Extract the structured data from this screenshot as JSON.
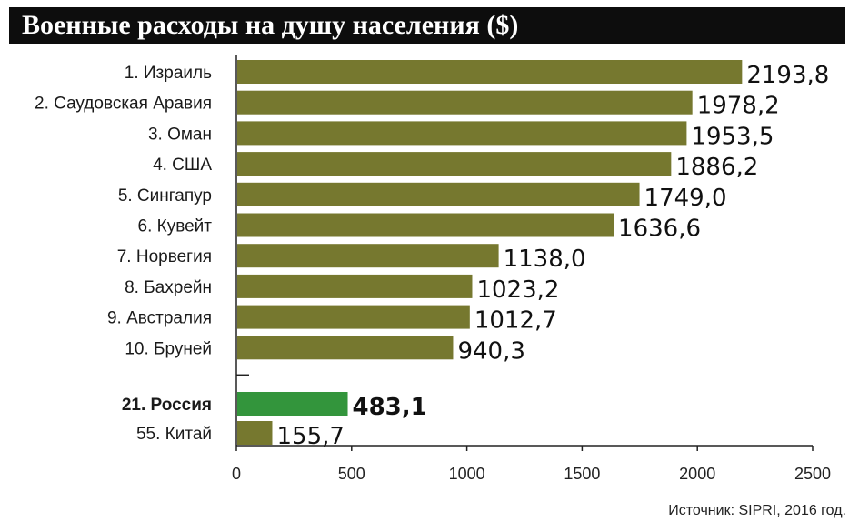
{
  "title": "Военные расходы на душу населения ($)",
  "source": "Источник: SIPRI, 2016 год.",
  "colors": {
    "bar": "#76782f",
    "highlight_bar": "#33953c",
    "title_background": "#0d0d0d",
    "title_text": "#ffffff",
    "axis": "#222222"
  },
  "chart_data": {
    "type": "bar",
    "orientation": "horizontal",
    "title": "Военные расходы на душу населения ($)",
    "xlabel": "",
    "ylabel": "",
    "xlim": [
      0,
      2500
    ],
    "xticks": [
      "0",
      "500",
      "1000",
      "1500",
      "2000",
      "2500"
    ],
    "grid": false,
    "categories": [
      "1. Израиль",
      "2. Саудовская Аравия",
      "3. Оман",
      "4. США",
      "5. Сингапур",
      "6. Кувейт",
      "7. Норвегия",
      "8. Бахрейн",
      "9. Австралия",
      "10. Бруней",
      "21. Россия",
      "55. Китай"
    ],
    "values": [
      2193.8,
      1978.2,
      1953.5,
      1886.2,
      1749.0,
      1636.6,
      1138.0,
      1023.2,
      1012.7,
      940.3,
      483.1,
      155.7
    ],
    "value_labels": [
      "2193,8",
      "1978,2",
      "1953,5",
      "1886,2",
      "1749,0",
      "1636,6",
      "1138,0",
      "1023,2",
      "1012,7",
      "940,3",
      "483,1",
      "155,7"
    ],
    "highlighted": "21. Россия",
    "axis_break_after": "10. Бруней"
  }
}
